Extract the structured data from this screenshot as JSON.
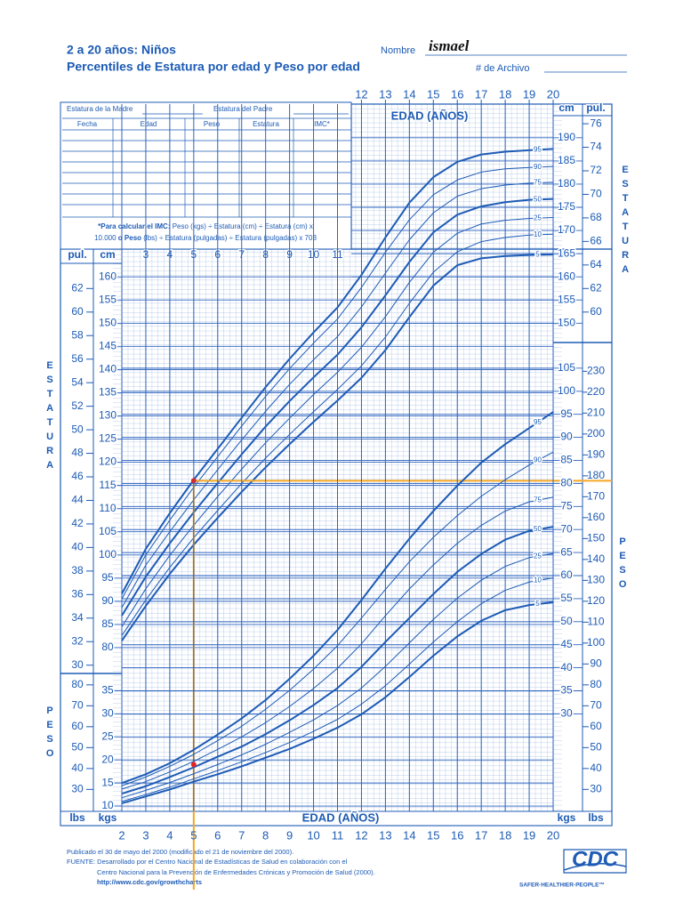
{
  "header": {
    "title": "2 a 20 años: Niños",
    "subtitle": "Percentiles de Estatura por edad y Peso por edad",
    "name_label": "Nombre",
    "name_value": "ismael",
    "file_label": "# de Archivo"
  },
  "record_table": {
    "mother": "Estatura de la Madre",
    "father": "Estatura del Padre",
    "columns": [
      "Fecha",
      "Edad",
      "Peso",
      "Estatura",
      "IMC*"
    ]
  },
  "bmi_note": {
    "l1_bold": "*Para calcular el IMC:",
    "l1": " Peso (kgs) ÷ Estatura (cm) ÷ Estatura (cm) x",
    "l2": "10.000 ",
    "l2_bold": "o Peso",
    "l2_end": " (lbs) ÷ Estatura (pulgadas) ÷ Estatura (pulgadas) x 703"
  },
  "footer": {
    "published": "Publicado el 30 de mayo del 2000 (modificado el 21 de noviembre del 2000).",
    "source1": "FUENTE: Desarrollado por el Centro Nacional de Estadísticas de Salud en colaboración con el",
    "source2": "Centro Nacional para la Prevención de Enfermedades Crónicas y Promoción de Salud (2000).",
    "url": "http://www.cdc.gov/growthcharts"
  },
  "logo": {
    "name": "CDC",
    "tagline": "SAFER·HEALTHIER·PEOPLE™"
  },
  "chart_data": [
    {
      "type": "line",
      "x_label": "EDAD (AÑOS)",
      "y_label": "ESTATURA",
      "y_unit": "cm",
      "y_unit_alt": "pul.",
      "x": [
        2,
        3,
        4,
        5,
        6,
        7,
        8,
        9,
        10,
        11,
        12,
        13,
        14,
        15,
        16,
        17,
        18,
        19,
        20
      ],
      "series": [
        {
          "name": "95",
          "color": "#1d5bb5",
          "line_width": 2,
          "values": [
            91.6,
            101.3,
            109.0,
            116.2,
            122.9,
            129.6,
            136.2,
            142.3,
            148.0,
            153.4,
            160.4,
            168.5,
            176.0,
            181.5,
            184.8,
            186.4,
            187.0,
            187.3,
            187.6
          ]
        },
        {
          "name": "90",
          "color": "#1d5bb5",
          "line_width": 1,
          "values": [
            90.5,
            100.0,
            107.5,
            114.6,
            121.2,
            127.8,
            134.2,
            140.2,
            145.7,
            150.9,
            157.7,
            165.3,
            172.3,
            177.7,
            180.9,
            182.6,
            183.3,
            183.6,
            183.8
          ]
        },
        {
          "name": "75",
          "color": "#1d5bb5",
          "line_width": 1,
          "values": [
            88.6,
            97.8,
            105.0,
            111.9,
            118.4,
            124.8,
            131.0,
            136.8,
            142.1,
            147.1,
            153.5,
            160.8,
            168.0,
            173.8,
            177.4,
            179.0,
            179.8,
            180.2,
            180.4
          ]
        },
        {
          "name": "50",
          "color": "#1d5bb5",
          "line_width": 2,
          "values": [
            86.9,
            95.3,
            102.5,
            109.2,
            115.5,
            121.7,
            127.7,
            133.2,
            138.3,
            143.2,
            149.1,
            156.0,
            163.2,
            169.6,
            173.4,
            175.2,
            176.1,
            176.6,
            176.8
          ]
        },
        {
          "name": "25",
          "color": "#1d5bb5",
          "line_width": 1,
          "values": [
            84.5,
            92.7,
            99.9,
            106.4,
            112.6,
            118.5,
            124.2,
            129.5,
            134.6,
            139.4,
            144.8,
            151.4,
            158.8,
            165.3,
            169.4,
            171.4,
            172.2,
            172.6,
            172.8
          ]
        },
        {
          "name": "10",
          "color": "#1d5bb5",
          "line_width": 1,
          "values": [
            82.6,
            90.3,
            97.3,
            103.7,
            109.6,
            115.4,
            120.9,
            126.0,
            130.9,
            135.7,
            140.8,
            147.0,
            154.3,
            161.0,
            165.4,
            167.6,
            168.5,
            169.0,
            169.2
          ]
        },
        {
          "name": "5",
          "color": "#1d5bb5",
          "line_width": 2,
          "values": [
            81.5,
            89.0,
            95.9,
            102.2,
            108.0,
            113.6,
            118.9,
            123.9,
            128.7,
            133.3,
            138.2,
            144.2,
            151.3,
            158.1,
            162.5,
            164.0,
            164.5,
            164.7,
            164.8
          ]
        }
      ],
      "xlim": [
        2,
        20
      ],
      "xticks": [
        3,
        4,
        5,
        6,
        7,
        8,
        9,
        10,
        11
      ],
      "x2ticks": [
        12,
        13,
        14,
        15,
        16,
        17,
        18,
        19,
        20
      ],
      "ylim": [
        77,
        196
      ],
      "yticks": [
        80,
        85,
        90,
        95,
        100,
        105,
        110,
        115,
        120,
        125,
        130,
        135,
        140,
        145,
        150,
        155,
        160
      ],
      "y2ticks": [
        150,
        155,
        160,
        165,
        170,
        175,
        180,
        185,
        190
      ],
      "ylim_alt": [
        30.31,
        77.17
      ],
      "yticks_alt": [
        30,
        32,
        34,
        36,
        38,
        40,
        42,
        44,
        46,
        48,
        50,
        52,
        54,
        56,
        58,
        60,
        62
      ],
      "y2ticks_alt": [
        60,
        62,
        64,
        66,
        68,
        70,
        72,
        74,
        76
      ],
      "point": {
        "x": 5,
        "value": 116,
        "color": "#e8231f"
      },
      "guide_color": "#f5a623"
    },
    {
      "type": "line",
      "x_label": "EDAD (AÑOS)",
      "y_label": "PESO",
      "y_unit": "kgs",
      "y_unit_alt": "lbs",
      "x": [
        2,
        3,
        4,
        5,
        6,
        7,
        8,
        9,
        10,
        11,
        12,
        13,
        14,
        15,
        16,
        17,
        18,
        19,
        20
      ],
      "series": [
        {
          "name": "95",
          "color": "#1d5bb5",
          "line_width": 2,
          "values": [
            15.0,
            16.9,
            19.3,
            22.2,
            25.5,
            29.0,
            33.0,
            37.6,
            42.6,
            48.2,
            54.7,
            61.5,
            68.0,
            74.0,
            79.5,
            84.5,
            88.5,
            92.0,
            95.5
          ]
        },
        {
          "name": "90",
          "color": "#1d5bb5",
          "line_width": 1,
          "values": [
            14.4,
            16.3,
            18.6,
            21.2,
            24.2,
            27.3,
            31.0,
            35.1,
            39.7,
            44.8,
            50.8,
            57.0,
            63.0,
            68.3,
            73.0,
            77.2,
            80.8,
            84.0,
            86.8
          ]
        },
        {
          "name": "75",
          "color": "#1d5bb5",
          "line_width": 1,
          "values": [
            13.7,
            15.3,
            17.4,
            19.7,
            22.3,
            25.0,
            28.1,
            31.6,
            35.5,
            39.9,
            45.2,
            51.3,
            57.1,
            62.3,
            67.0,
            70.9,
            74.0,
            76.0,
            77.0
          ]
        },
        {
          "name": "50",
          "color": "#1d5bb5",
          "line_width": 2,
          "values": [
            12.7,
            14.3,
            16.3,
            18.4,
            20.7,
            22.9,
            25.6,
            28.6,
            31.9,
            35.6,
            40.2,
            45.6,
            50.8,
            56.0,
            60.8,
            64.7,
            67.8,
            69.7,
            70.6
          ]
        },
        {
          "name": "25",
          "color": "#1d5bb5",
          "line_width": 1,
          "values": [
            11.8,
            13.4,
            15.1,
            17.0,
            19.0,
            21.1,
            23.4,
            26.0,
            28.7,
            31.8,
            35.6,
            40.3,
            45.4,
            50.5,
            55.1,
            59.0,
            62.0,
            63.9,
            64.8
          ]
        },
        {
          "name": "10",
          "color": "#1d5bb5",
          "line_width": 1,
          "values": [
            11.0,
            12.5,
            14.1,
            15.9,
            17.7,
            19.6,
            21.6,
            23.8,
            26.2,
            28.8,
            32.1,
            36.1,
            40.8,
            45.6,
            50.0,
            53.9,
            56.8,
            58.6,
            59.5
          ]
        },
        {
          "name": "5",
          "color": "#1d5bb5",
          "line_width": 2,
          "values": [
            10.6,
            12.1,
            13.6,
            15.3,
            16.9,
            18.6,
            20.5,
            22.4,
            24.6,
            27.0,
            29.9,
            33.6,
            38.0,
            42.6,
            46.8,
            50.2,
            52.5,
            53.6,
            54.2
          ]
        }
      ],
      "xlim": [
        2,
        20
      ],
      "xticks": [
        2,
        3,
        4,
        5,
        6,
        7,
        8,
        9,
        10,
        11,
        12,
        13,
        14,
        15,
        16,
        17,
        18,
        19,
        20
      ],
      "ylim": [
        8.5,
        107
      ],
      "yticks": [
        10,
        15,
        20,
        25,
        30,
        35
      ],
      "y2ticks": [
        30,
        35,
        40,
        45,
        50,
        55,
        60,
        65,
        70,
        75,
        80,
        85,
        90,
        95,
        100,
        105
      ],
      "ylim_alt": [
        18.74,
        235.89
      ],
      "yticks_alt": [
        30,
        40,
        50,
        60,
        70,
        80
      ],
      "y2ticks_alt": [
        30,
        40,
        50,
        60,
        70,
        80,
        90,
        100,
        110,
        120,
        130,
        140,
        150,
        160,
        170,
        180,
        190,
        200,
        210,
        220,
        230
      ],
      "point": {
        "x": 5,
        "value": 19,
        "color": "#e8231f"
      },
      "guide_color": "#f5a623"
    }
  ]
}
